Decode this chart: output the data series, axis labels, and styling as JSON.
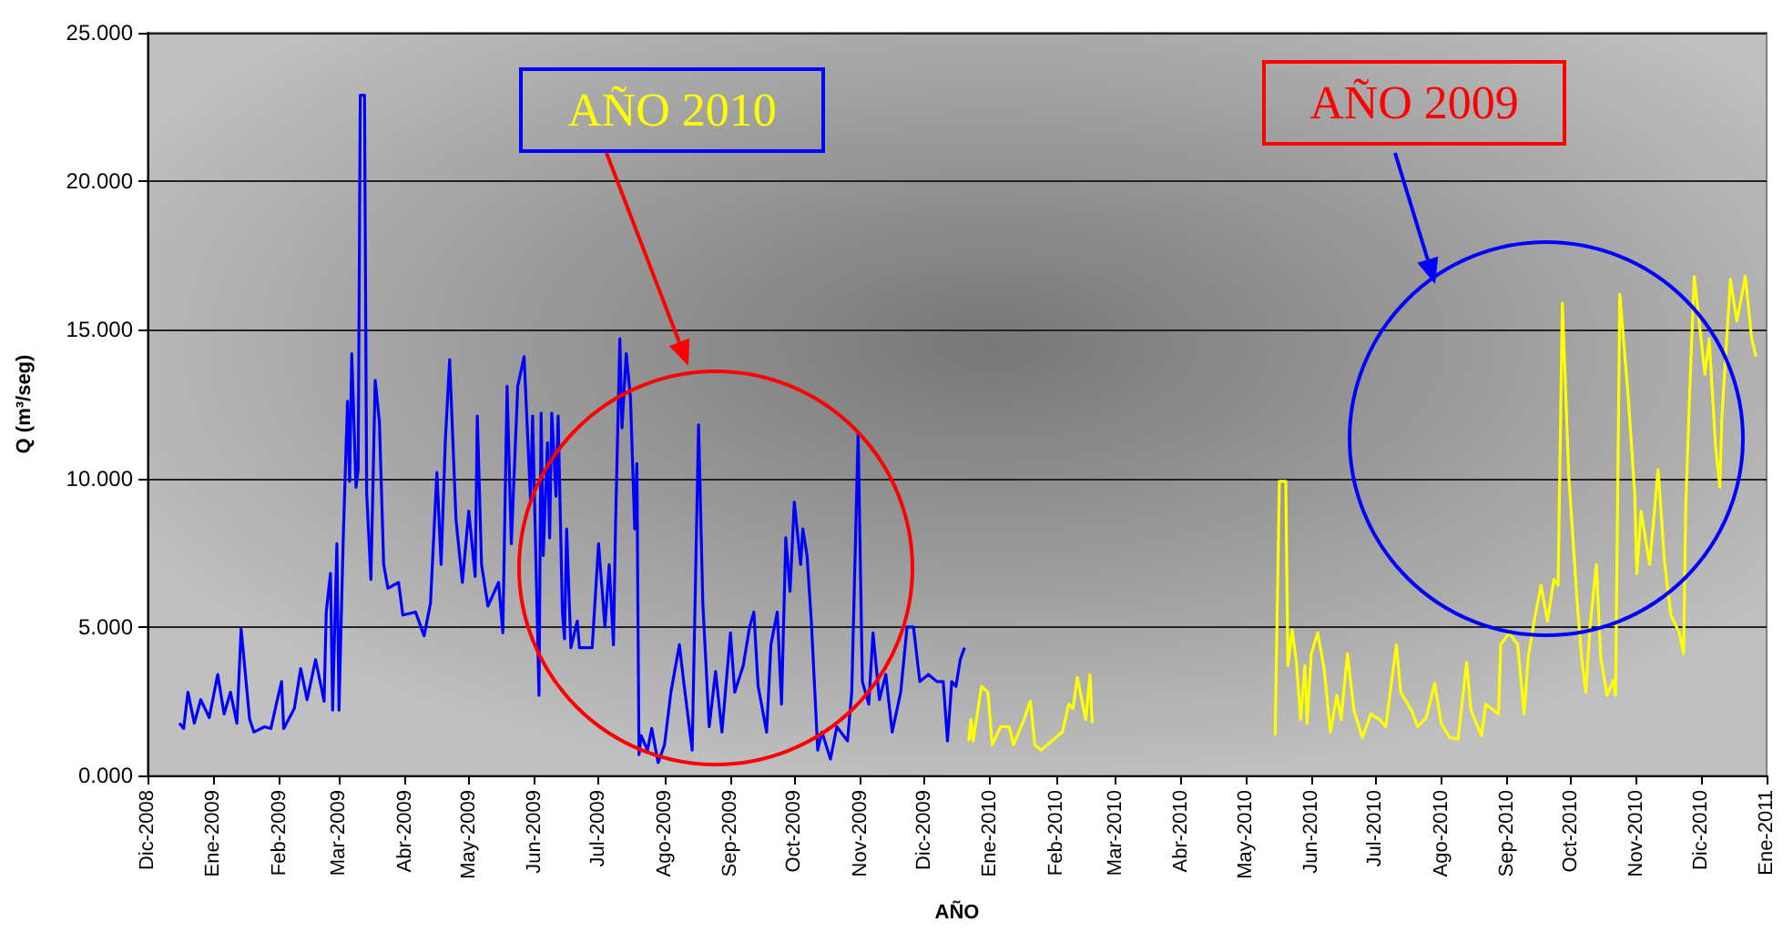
{
  "chart_data": {
    "type": "line",
    "xlabel": "AÑO",
    "ylabel": "Q (m³/seg)",
    "annotations": [
      "AÑO 2010",
      "AÑO 2009"
    ],
    "xlim": [
      "2008-12-01",
      "2011-01-01"
    ],
    "xticks": [
      {
        "value": "2008-12-01",
        "label": "Dic-2008"
      },
      {
        "value": "2009-01-01",
        "label": "Ene-2009"
      },
      {
        "value": "2009-02-01",
        "label": "Feb-2009"
      },
      {
        "value": "2009-03-01",
        "label": "Mar-2009"
      },
      {
        "value": "2009-04-01",
        "label": "Abr-2009"
      },
      {
        "value": "2009-05-01",
        "label": "May-2009"
      },
      {
        "value": "2009-06-01",
        "label": "Jun-2009"
      },
      {
        "value": "2009-07-01",
        "label": "Jul-2009"
      },
      {
        "value": "2009-08-01",
        "label": "Ago-2009"
      },
      {
        "value": "2009-09-01",
        "label": "Sep-2009"
      },
      {
        "value": "2009-10-01",
        "label": "Oct-2009"
      },
      {
        "value": "2009-11-01",
        "label": "Nov-2009"
      },
      {
        "value": "2009-12-01",
        "label": "Dic-2009"
      },
      {
        "value": "2010-01-01",
        "label": "Ene-2010"
      },
      {
        "value": "2010-02-01",
        "label": "Feb-2010"
      },
      {
        "value": "2010-03-01",
        "label": "Mar-2010"
      },
      {
        "value": "2010-04-01",
        "label": "Abr-2010"
      },
      {
        "value": "2010-05-01",
        "label": "May-2010"
      },
      {
        "value": "2010-06-01",
        "label": "Jun-2010"
      },
      {
        "value": "2010-07-01",
        "label": "Jul-2010"
      },
      {
        "value": "2010-08-01",
        "label": "Ago-2010"
      },
      {
        "value": "2010-09-01",
        "label": "Sep-2010"
      },
      {
        "value": "2010-10-01",
        "label": "Oct-2010"
      },
      {
        "value": "2010-11-01",
        "label": "Nov-2010"
      },
      {
        "value": "2010-12-01",
        "label": "Dic-2010"
      },
      {
        "value": "2011-01-01",
        "label": "Ene-2011"
      }
    ],
    "ylim": [
      0,
      25
    ],
    "yticks": [
      {
        "value": 0,
        "label": "0.000"
      },
      {
        "value": 5,
        "label": "5.000"
      },
      {
        "value": 10,
        "label": "10.000"
      },
      {
        "value": 15,
        "label": "15.000"
      },
      {
        "value": 20,
        "label": "20.000"
      },
      {
        "value": 25,
        "label": "25.000"
      }
    ],
    "grid": "y",
    "marker": "none",
    "line_style": "solid",
    "series": [
      {
        "color": "#0000ff",
        "x": [
          "2008-12-16",
          "2008-12-18",
          "2008-12-20",
          "2008-12-23",
          "2008-12-26",
          "2008-12-30",
          "2009-01-03",
          "2009-01-06",
          "2009-01-09",
          "2009-01-12",
          "2009-01-14",
          "2009-01-18",
          "2009-01-20",
          "2009-01-25",
          "2009-01-28",
          "2009-01-31",
          "2009-02-02",
          "2009-02-03",
          "2009-02-08",
          "2009-02-11",
          "2009-02-14",
          "2009-02-18",
          "2009-02-22",
          "2009-02-23",
          "2009-02-25",
          "2009-02-26",
          "2009-02-28",
          "2009-03-01",
          "2009-03-03",
          "2009-03-05",
          "2009-03-06",
          "2009-03-07",
          "2009-03-09",
          "2009-03-10",
          "2009-03-11",
          "2009-03-13",
          "2009-03-14",
          "2009-03-16",
          "2009-03-18",
          "2009-03-20",
          "2009-03-22",
          "2009-03-24",
          "2009-03-29",
          "2009-03-31",
          "2009-04-06",
          "2009-04-10",
          "2009-04-13",
          "2009-04-16",
          "2009-04-18",
          "2009-04-20",
          "2009-04-22",
          "2009-04-25",
          "2009-04-28",
          "2009-05-01",
          "2009-05-04",
          "2009-05-05",
          "2009-05-07",
          "2009-05-10",
          "2009-05-15",
          "2009-05-17",
          "2009-05-19",
          "2009-05-21",
          "2009-05-24",
          "2009-05-27",
          "2009-05-30",
          "2009-05-31",
          "2009-06-03",
          "2009-06-04",
          "2009-06-05",
          "2009-06-07",
          "2009-06-08",
          "2009-06-09",
          "2009-06-11",
          "2009-06-12",
          "2009-06-14",
          "2009-06-15",
          "2009-06-16",
          "2009-06-18",
          "2009-06-21",
          "2009-06-22",
          "2009-06-28",
          "2009-07-01",
          "2009-07-04",
          "2009-07-06",
          "2009-07-08",
          "2009-07-09",
          "2009-07-11",
          "2009-07-12",
          "2009-07-14",
          "2009-07-16",
          "2009-07-18",
          "2009-07-19",
          "2009-07-20",
          "2009-07-21",
          "2009-07-24",
          "2009-07-26",
          "2009-07-29",
          "2009-08-01",
          "2009-08-04",
          "2009-08-08",
          "2009-08-10",
          "2009-08-14",
          "2009-08-17",
          "2009-08-19",
          "2009-08-22",
          "2009-08-25",
          "2009-08-28",
          "2009-09-01",
          "2009-09-03",
          "2009-09-07",
          "2009-09-10",
          "2009-09-12",
          "2009-09-14",
          "2009-09-18",
          "2009-09-20",
          "2009-09-23",
          "2009-09-25",
          "2009-09-27",
          "2009-09-29",
          "2009-10-01",
          "2009-10-04",
          "2009-10-05",
          "2009-10-07",
          "2009-10-09",
          "2009-10-12",
          "2009-10-14",
          "2009-10-18",
          "2009-10-21",
          "2009-10-26",
          "2009-10-28",
          "2009-10-31",
          "2009-11-02",
          "2009-11-05",
          "2009-11-07",
          "2009-11-10",
          "2009-11-13",
          "2009-11-16",
          "2009-11-20",
          "2009-11-23",
          "2009-11-26",
          "2009-11-29",
          "2009-12-03",
          "2009-12-07",
          "2009-12-10",
          "2009-12-12",
          "2009-12-14",
          "2009-12-16",
          "2009-12-18",
          "2009-12-20"
        ],
        "values": [
          1.76,
          1.58,
          2.8,
          1.76,
          2.55,
          1.95,
          3.4,
          2.07,
          2.8,
          1.76,
          4.93,
          1.89,
          1.46,
          1.64,
          1.58,
          2.55,
          3.16,
          1.58,
          2.25,
          3.6,
          2.55,
          3.9,
          2.5,
          5.5,
          6.8,
          2.2,
          7.8,
          2.2,
          8.0,
          12.6,
          9.9,
          14.2,
          9.7,
          10.3,
          22.9,
          22.9,
          9.5,
          6.6,
          13.3,
          11.9,
          7.1,
          6.3,
          6.5,
          5.4,
          5.5,
          4.7,
          5.8,
          10.2,
          7.1,
          11.3,
          14.0,
          8.6,
          6.5,
          8.9,
          6.7,
          12.1,
          7.1,
          5.7,
          6.5,
          4.8,
          13.1,
          7.8,
          13.1,
          14.1,
          9.3,
          12.1,
          2.7,
          12.2,
          7.4,
          11.2,
          8.0,
          12.2,
          9.4,
          12.1,
          5.5,
          4.6,
          8.3,
          4.3,
          5.2,
          4.3,
          4.3,
          7.8,
          5.0,
          7.1,
          4.4,
          8.5,
          14.7,
          11.7,
          14.2,
          12.7,
          8.3,
          10.5,
          0.7,
          1.34,
          0.85,
          1.58,
          0.43,
          1.03,
          2.8,
          4.4,
          3.16,
          0.85,
          11.8,
          5.8,
          1.64,
          3.5,
          1.46,
          4.8,
          2.8,
          3.7,
          5.0,
          5.5,
          3.0,
          1.46,
          4.4,
          5.5,
          2.4,
          8.0,
          6.2,
          9.2,
          7.1,
          8.3,
          7.4,
          5.2,
          0.85,
          1.46,
          0.55,
          1.64,
          1.16,
          2.8,
          11.5,
          3.16,
          2.4,
          4.8,
          2.55,
          3.4,
          1.46,
          2.8,
          5.0,
          5.0,
          3.16,
          3.4,
          3.16,
          3.16,
          1.16,
          3.16,
          3.0,
          3.9,
          4.3
        ]
      },
      {
        "color": "#ffff00",
        "x": [
          "2009-12-22",
          "2009-12-23",
          "2009-12-24",
          "2009-12-28",
          "2009-12-31",
          "2010-01-02",
          "2010-01-06",
          "2010-01-10",
          "2010-01-12",
          "2010-01-17",
          "2010-01-20",
          "2010-01-22",
          "2010-01-25",
          "2010-01-30",
          "2010-02-04",
          "2010-02-07",
          "2010-02-09",
          "2010-02-11",
          "2010-02-15",
          "2010-02-17",
          "2010-02-18",
          "2010-04-01",
          "2010-05-15",
          "2010-05-17",
          "2010-05-20",
          "2010-05-21",
          "2010-05-23",
          "2010-05-25",
          "2010-05-27",
          "2010-05-29",
          "2010-05-30",
          "2010-06-01",
          "2010-06-04",
          "2010-06-07",
          "2010-06-10",
          "2010-06-13",
          "2010-06-15",
          "2010-06-18",
          "2010-06-21",
          "2010-06-25",
          "2010-06-29",
          "2010-07-03",
          "2010-07-06",
          "2010-07-11",
          "2010-07-13",
          "2010-07-18",
          "2010-07-21",
          "2010-07-25",
          "2010-07-29",
          "2010-08-01",
          "2010-08-05",
          "2010-08-09",
          "2010-08-13",
          "2010-08-15",
          "2010-08-20",
          "2010-08-22",
          "2010-08-28",
          "2010-08-29",
          "2010-09-02",
          "2010-09-06",
          "2010-09-09",
          "2010-09-11",
          "2010-09-14",
          "2010-09-17",
          "2010-09-20",
          "2010-09-23",
          "2010-09-25",
          "2010-09-27",
          "2010-09-30",
          "2010-10-04",
          "2010-10-06",
          "2010-10-08",
          "2010-10-10",
          "2010-10-13",
          "2010-10-15",
          "2010-10-18",
          "2010-10-21",
          "2010-10-22",
          "2010-10-24",
          "2010-10-28",
          "2010-10-31",
          "2010-11-01",
          "2010-11-03",
          "2010-11-07",
          "2010-11-11",
          "2010-11-14",
          "2010-11-17",
          "2010-11-21",
          "2010-11-23",
          "2010-11-24",
          "2010-11-26",
          "2010-11-28",
          "2010-12-03",
          "2010-12-05",
          "2010-12-08",
          "2010-12-10",
          "2010-12-11",
          "2010-12-15",
          "2010-12-18",
          "2010-12-22",
          "2010-12-25",
          "2010-12-27"
        ],
        "values": [
          1.16,
          1.89,
          1.16,
          3.0,
          2.8,
          1.03,
          1.64,
          1.64,
          1.03,
          1.89,
          2.5,
          1.03,
          0.85,
          1.16,
          1.46,
          2.4,
          2.25,
          3.3,
          1.89,
          3.4,
          1.76,
          null,
          1.36,
          9.9,
          9.9,
          3.7,
          4.9,
          3.8,
          1.89,
          3.7,
          1.76,
          4.1,
          4.8,
          3.6,
          1.46,
          2.7,
          1.89,
          4.1,
          2.2,
          1.28,
          2.07,
          1.89,
          1.64,
          4.4,
          2.8,
          2.2,
          1.64,
          1.95,
          3.1,
          1.76,
          1.28,
          1.22,
          3.8,
          2.2,
          1.34,
          2.4,
          2.07,
          4.4,
          4.8,
          4.4,
          2.07,
          4.0,
          5.3,
          6.4,
          5.2,
          6.6,
          6.4,
          15.9,
          10.1,
          5.8,
          4.0,
          2.8,
          5.0,
          7.1,
          4.0,
          2.7,
          3.2,
          2.7,
          16.2,
          12.7,
          9.5,
          6.8,
          8.9,
          7.1,
          10.3,
          7.2,
          5.4,
          4.8,
          4.1,
          9.1,
          13.2,
          16.8,
          13.5,
          14.7,
          11.1,
          9.7,
          12.1,
          16.7,
          15.3,
          16.8,
          14.7,
          14.1
        ]
      }
    ]
  }
}
